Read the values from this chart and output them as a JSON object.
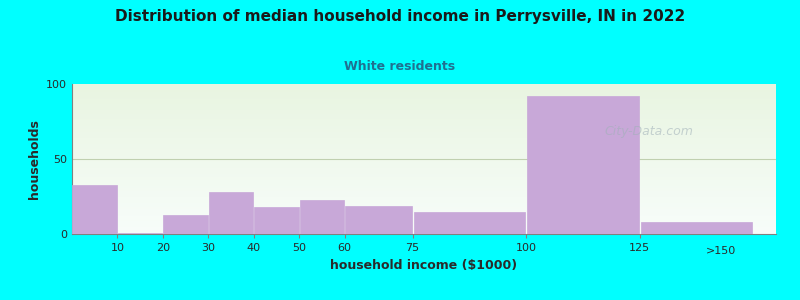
{
  "title": "Distribution of median household income in Perrysville, IN in 2022",
  "subtitle": "White residents",
  "xlabel": "household income ($1000)",
  "ylabel": "households",
  "background_color": "#00FFFF",
  "bar_color": "#c8a8d8",
  "bar_edge_color": "#c8a8d8",
  "categories": [
    "10",
    "20",
    "30",
    "40",
    "50",
    "60",
    "75",
    "100",
    "125",
    ">150"
  ],
  "values": [
    33,
    1,
    13,
    28,
    18,
    23,
    19,
    15,
    92,
    8
  ],
  "left_edges": [
    0,
    10,
    20,
    30,
    40,
    50,
    60,
    75,
    100,
    125
  ],
  "widths": [
    10,
    10,
    10,
    10,
    10,
    10,
    15,
    25,
    25,
    25
  ],
  "tick_positions": [
    10,
    20,
    30,
    40,
    50,
    60,
    75,
    100,
    125
  ],
  "tick_labels": [
    "10",
    "20",
    "30",
    "40",
    "50",
    "60",
    "75",
    "100",
    "125"
  ],
  "xlim": [
    0,
    155
  ],
  "ylim": [
    0,
    100
  ],
  "yticks": [
    0,
    50,
    100
  ],
  "grid_color": "#c0d0b0",
  "title_color": "#1a1a1a",
  "subtitle_color": "#207090",
  "axis_label_color": "#2a2a2a",
  "tick_color": "#2a2a2a",
  "watermark_text": "City-Data.com",
  "title_fontsize": 11,
  "subtitle_fontsize": 9,
  "xlabel_fontsize": 9,
  "ylabel_fontsize": 9
}
